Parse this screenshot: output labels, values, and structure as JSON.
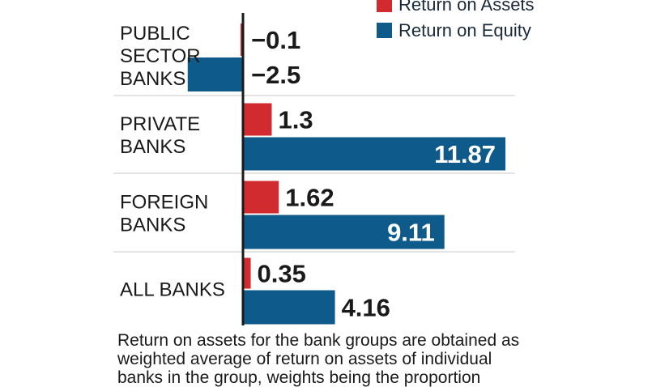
{
  "chart_data": {
    "type": "bar",
    "orientation": "horizontal",
    "categories": [
      "PUBLIC\nSECTOR\nBANKS",
      "PRIVATE\nBANKS",
      "FOREIGN\nBANKS",
      "ALL BANKS"
    ],
    "series": [
      {
        "name": "Return on Assets",
        "color": "#d12a2f",
        "values": [
          -0.1,
          1.3,
          1.62,
          0.35
        ],
        "labels": [
          "−0.1",
          "1.3",
          "1.62",
          "0.35"
        ]
      },
      {
        "name": "Return on Equity",
        "color": "#0e5a8a",
        "values": [
          -2.5,
          11.87,
          9.11,
          4.16
        ],
        "labels": [
          "−2.5",
          "11.87",
          "9.11",
          "4.16"
        ]
      }
    ],
    "grid": true,
    "legend": "top-right"
  },
  "footnote": "Return on assets for the bank groups are obtained as\nweighted average of return on assets of individual\nbanks in the group, weights being the proportion"
}
